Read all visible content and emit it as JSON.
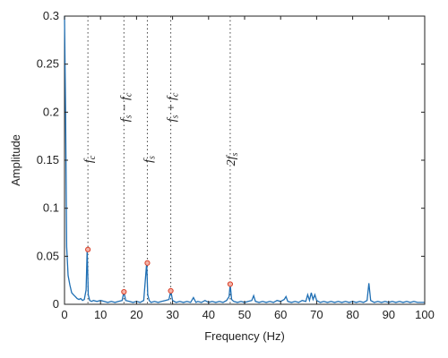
{
  "chart_data": {
    "type": "line",
    "xlabel": "Frequency (Hz)",
    "ylabel": "Amplitude",
    "xlim": [
      0,
      100
    ],
    "ylim": [
      0,
      0.3
    ],
    "xticks": [
      0,
      10,
      20,
      30,
      40,
      50,
      60,
      70,
      80,
      90,
      100
    ],
    "yticks": [
      0,
      0.05,
      0.1,
      0.15,
      0.2,
      0.25,
      0.3
    ],
    "xtick_labels": [
      "0",
      "10",
      "20",
      "30",
      "40",
      "50",
      "60",
      "70",
      "80",
      "90",
      "100"
    ],
    "ytick_labels": [
      "0",
      "0.05",
      "0.1",
      "0.15",
      "0.2",
      "0.25",
      "0.3"
    ],
    "grid": false,
    "line_color": "#1f6fb4",
    "marker_color": "#d9412b",
    "series": [
      {
        "x": [
          0,
          0.3,
          0.6,
          1.0,
          1.5,
          2.0,
          2.5,
          3.0,
          3.5,
          4.0,
          4.5,
          5.0,
          5.5,
          6.0,
          6.3,
          6.6,
          7.0,
          7.5,
          8.0,
          9.0,
          10.0,
          11.0,
          12.0,
          13.0,
          14.0,
          15.0,
          16.0,
          16.5,
          17.0,
          18.0,
          19.0,
          20.0,
          21.0,
          22.0,
          22.8,
          23.1,
          23.5,
          24.0,
          25.0,
          26.0,
          27.0,
          28.0,
          29.0,
          29.5,
          30.0,
          31.0,
          32.0,
          33.0,
          34.0,
          35.0,
          35.8,
          36.5,
          37.0,
          38.0,
          39.0,
          40.0,
          41.0,
          42.0,
          43.0,
          44.0,
          45.0,
          45.7,
          46.0,
          46.4,
          47.0,
          48.0,
          49.0,
          50.0,
          51.0,
          52.0,
          52.5,
          53.0,
          54.0,
          55.0,
          56.0,
          57.0,
          58.0,
          59.0,
          60.0,
          61.0,
          61.5,
          62.0,
          63.0,
          64.0,
          65.0,
          66.0,
          67.0,
          67.5,
          68.0,
          68.5,
          69.0,
          69.5,
          70.0,
          71.0,
          72.0,
          73.0,
          74.0,
          75.0,
          76.0,
          77.0,
          78.0,
          79.0,
          80.0,
          81.0,
          82.0,
          83.0,
          84.0,
          84.5,
          85.0,
          86.0,
          87.0,
          88.0,
          89.0,
          90.0,
          91.0,
          92.0,
          93.0,
          94.0,
          95.0,
          96.0,
          97.0,
          98.0,
          99.0,
          100.0
        ],
        "y": [
          0.3,
          0.2,
          0.06,
          0.03,
          0.02,
          0.012,
          0.01,
          0.008,
          0.006,
          0.005,
          0.006,
          0.004,
          0.005,
          0.015,
          0.057,
          0.01,
          0.004,
          0.003,
          0.004,
          0.003,
          0.004,
          0.003,
          0.002,
          0.003,
          0.002,
          0.003,
          0.004,
          0.013,
          0.004,
          0.003,
          0.002,
          0.003,
          0.002,
          0.004,
          0.043,
          0.01,
          0.004,
          0.002,
          0.003,
          0.002,
          0.003,
          0.004,
          0.005,
          0.014,
          0.004,
          0.002,
          0.003,
          0.002,
          0.003,
          0.002,
          0.007,
          0.002,
          0.003,
          0.002,
          0.004,
          0.002,
          0.003,
          0.002,
          0.003,
          0.002,
          0.004,
          0.008,
          0.021,
          0.005,
          0.003,
          0.002,
          0.003,
          0.002,
          0.003,
          0.004,
          0.009,
          0.003,
          0.002,
          0.003,
          0.002,
          0.003,
          0.002,
          0.004,
          0.003,
          0.005,
          0.008,
          0.003,
          0.002,
          0.003,
          0.002,
          0.004,
          0.003,
          0.01,
          0.004,
          0.012,
          0.005,
          0.01,
          0.004,
          0.002,
          0.003,
          0.002,
          0.003,
          0.002,
          0.003,
          0.002,
          0.003,
          0.002,
          0.003,
          0.002,
          0.003,
          0.002,
          0.004,
          0.022,
          0.004,
          0.002,
          0.003,
          0.002,
          0.003,
          0.002,
          0.003,
          0.002,
          0.003,
          0.002,
          0.003,
          0.002,
          0.003,
          0.002,
          0.002,
          0.002
        ]
      }
    ],
    "markers": [
      {
        "x": 6.5,
        "y": 0.057
      },
      {
        "x": 16.5,
        "y": 0.013
      },
      {
        "x": 23.0,
        "y": 0.043
      },
      {
        "x": 29.5,
        "y": 0.014
      },
      {
        "x": 46.0,
        "y": 0.021
      }
    ],
    "annotations": [
      {
        "x": 6.5,
        "text": "fc"
      },
      {
        "x": 16.5,
        "text": "fs − fc"
      },
      {
        "x": 23.0,
        "text": "fs"
      },
      {
        "x": 29.5,
        "text": "fs + fc"
      },
      {
        "x": 46.0,
        "text": "2fs"
      }
    ]
  }
}
